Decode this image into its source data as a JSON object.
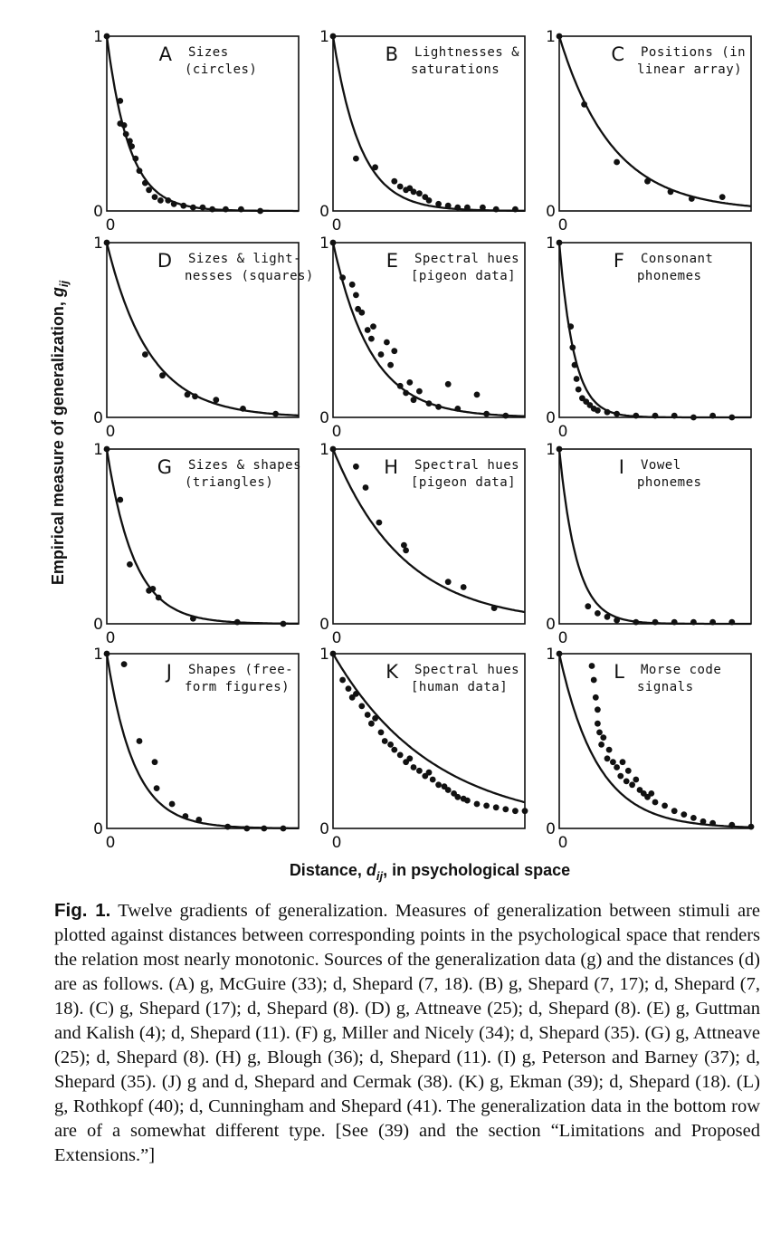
{
  "figure": {
    "y_axis_label": "Empirical measure of generalization, ",
    "y_axis_symbol": "g",
    "y_axis_subscript": "ij",
    "x_axis_label_pre": "Distance, ",
    "x_axis_symbol": "d",
    "x_axis_subscript": "ij",
    "x_axis_label_post": ", in psychological space",
    "tick_one": "1",
    "tick_zero": "0"
  },
  "chart_data": [
    {
      "type": "scatter",
      "letter": "A",
      "title_lines": [
        "Sizes",
        "(circles)"
      ],
      "ylim": [
        0,
        1
      ],
      "xlim": [
        0,
        1
      ],
      "decay": 8.5,
      "points": [
        [
          0.0,
          1.0
        ],
        [
          0.07,
          0.63
        ],
        [
          0.07,
          0.5
        ],
        [
          0.09,
          0.49
        ],
        [
          0.1,
          0.44
        ],
        [
          0.12,
          0.4
        ],
        [
          0.13,
          0.37
        ],
        [
          0.15,
          0.3
        ],
        [
          0.17,
          0.23
        ],
        [
          0.2,
          0.16
        ],
        [
          0.22,
          0.12
        ],
        [
          0.25,
          0.08
        ],
        [
          0.28,
          0.06
        ],
        [
          0.32,
          0.06
        ],
        [
          0.35,
          0.04
        ],
        [
          0.4,
          0.03
        ],
        [
          0.45,
          0.02
        ],
        [
          0.5,
          0.02
        ],
        [
          0.55,
          0.01
        ],
        [
          0.62,
          0.01
        ],
        [
          0.7,
          0.01
        ],
        [
          0.8,
          0.0
        ]
      ]
    },
    {
      "type": "scatter",
      "letter": "B",
      "title_lines": [
        "Lightnesses &",
        "saturations"
      ],
      "ylim": [
        0,
        1
      ],
      "xlim": [
        0,
        1
      ],
      "decay": 7,
      "points": [
        [
          0.0,
          1.0
        ],
        [
          0.12,
          0.3
        ],
        [
          0.22,
          0.25
        ],
        [
          0.32,
          0.17
        ],
        [
          0.35,
          0.14
        ],
        [
          0.38,
          0.12
        ],
        [
          0.4,
          0.13
        ],
        [
          0.42,
          0.11
        ],
        [
          0.45,
          0.1
        ],
        [
          0.48,
          0.08
        ],
        [
          0.5,
          0.06
        ],
        [
          0.55,
          0.04
        ],
        [
          0.6,
          0.03
        ],
        [
          0.65,
          0.02
        ],
        [
          0.7,
          0.02
        ],
        [
          0.78,
          0.02
        ],
        [
          0.85,
          0.01
        ],
        [
          0.95,
          0.01
        ]
      ]
    },
    {
      "type": "scatter",
      "letter": "C",
      "title_lines": [
        "Positions (in",
        "linear array)"
      ],
      "ylim": [
        0,
        1
      ],
      "xlim": [
        0,
        1
      ],
      "decay": 3.6,
      "points": [
        [
          0.0,
          1.0
        ],
        [
          0.13,
          0.61
        ],
        [
          0.3,
          0.28
        ],
        [
          0.46,
          0.17
        ],
        [
          0.58,
          0.11
        ],
        [
          0.69,
          0.07
        ],
        [
          0.85,
          0.08
        ]
      ]
    },
    {
      "type": "scatter",
      "letter": "D",
      "title_lines": [
        "Sizes & light-",
        "nesses (squares)"
      ],
      "ylim": [
        0,
        1
      ],
      "xlim": [
        0,
        1
      ],
      "decay": 4.5,
      "points": [
        [
          0.0,
          1.0
        ],
        [
          0.2,
          0.36
        ],
        [
          0.29,
          0.24
        ],
        [
          0.42,
          0.13
        ],
        [
          0.46,
          0.12
        ],
        [
          0.57,
          0.1
        ],
        [
          0.71,
          0.05
        ],
        [
          0.88,
          0.02
        ]
      ]
    },
    {
      "type": "scatter",
      "letter": "E",
      "title_lines": [
        "Spectral hues",
        "[pigeon data]"
      ],
      "ylim": [
        0,
        1
      ],
      "xlim": [
        0,
        1
      ],
      "decay": 5,
      "points": [
        [
          0.0,
          1.0
        ],
        [
          0.05,
          0.8
        ],
        [
          0.1,
          0.76
        ],
        [
          0.12,
          0.7
        ],
        [
          0.13,
          0.62
        ],
        [
          0.15,
          0.6
        ],
        [
          0.18,
          0.5
        ],
        [
          0.2,
          0.45
        ],
        [
          0.21,
          0.52
        ],
        [
          0.25,
          0.36
        ],
        [
          0.28,
          0.43
        ],
        [
          0.3,
          0.3
        ],
        [
          0.32,
          0.38
        ],
        [
          0.35,
          0.18
        ],
        [
          0.38,
          0.14
        ],
        [
          0.4,
          0.2
        ],
        [
          0.42,
          0.1
        ],
        [
          0.45,
          0.15
        ],
        [
          0.5,
          0.08
        ],
        [
          0.55,
          0.06
        ],
        [
          0.6,
          0.19
        ],
        [
          0.65,
          0.05
        ],
        [
          0.75,
          0.13
        ],
        [
          0.8,
          0.02
        ],
        [
          0.9,
          0.01
        ]
      ]
    },
    {
      "type": "scatter",
      "letter": "F",
      "title_lines": [
        "Consonant",
        "phonemes"
      ],
      "ylim": [
        0,
        1
      ],
      "xlim": [
        0,
        1
      ],
      "decay": 13,
      "points": [
        [
          0.0,
          1.0
        ],
        [
          0.06,
          0.52
        ],
        [
          0.07,
          0.4
        ],
        [
          0.08,
          0.3
        ],
        [
          0.09,
          0.22
        ],
        [
          0.1,
          0.16
        ],
        [
          0.12,
          0.11
        ],
        [
          0.14,
          0.09
        ],
        [
          0.16,
          0.07
        ],
        [
          0.18,
          0.05
        ],
        [
          0.2,
          0.04
        ],
        [
          0.25,
          0.03
        ],
        [
          0.3,
          0.02
        ],
        [
          0.4,
          0.01
        ],
        [
          0.5,
          0.01
        ],
        [
          0.6,
          0.01
        ],
        [
          0.7,
          0.0
        ],
        [
          0.8,
          0.01
        ],
        [
          0.9,
          0.0
        ]
      ]
    },
    {
      "type": "scatter",
      "letter": "G",
      "title_lines": [
        "Sizes & shapes",
        "(triangles)"
      ],
      "ylim": [
        0,
        1
      ],
      "xlim": [
        0,
        1
      ],
      "decay": 7,
      "points": [
        [
          0.0,
          1.0
        ],
        [
          0.07,
          0.71
        ],
        [
          0.12,
          0.34
        ],
        [
          0.22,
          0.19
        ],
        [
          0.24,
          0.2
        ],
        [
          0.27,
          0.15
        ],
        [
          0.45,
          0.03
        ],
        [
          0.68,
          0.01
        ],
        [
          0.92,
          0.0
        ]
      ]
    },
    {
      "type": "scatter",
      "letter": "H",
      "title_lines": [
        "Spectral hues",
        "[pigeon data]"
      ],
      "ylim": [
        0,
        1
      ],
      "xlim": [
        0,
        1
      ],
      "decay": 2.7,
      "points": [
        [
          0.0,
          1.0
        ],
        [
          0.12,
          0.9
        ],
        [
          0.17,
          0.78
        ],
        [
          0.24,
          0.58
        ],
        [
          0.37,
          0.45
        ],
        [
          0.38,
          0.42
        ],
        [
          0.6,
          0.24
        ],
        [
          0.68,
          0.21
        ],
        [
          0.84,
          0.09
        ]
      ]
    },
    {
      "type": "scatter",
      "letter": "I",
      "title_lines": [
        "Vowel",
        "phonemes"
      ],
      "ylim": [
        0,
        1
      ],
      "xlim": [
        0,
        1
      ],
      "decay": 11,
      "points": [
        [
          0.0,
          1.0
        ],
        [
          0.15,
          0.1
        ],
        [
          0.2,
          0.06
        ],
        [
          0.25,
          0.04
        ],
        [
          0.3,
          0.02
        ],
        [
          0.4,
          0.01
        ],
        [
          0.5,
          0.01
        ],
        [
          0.6,
          0.01
        ],
        [
          0.7,
          0.01
        ],
        [
          0.8,
          0.01
        ],
        [
          0.9,
          0.01
        ]
      ]
    },
    {
      "type": "scatter",
      "letter": "J",
      "title_lines": [
        "Shapes (free-",
        "form figures)"
      ],
      "ylim": [
        0,
        1
      ],
      "xlim": [
        0,
        1
      ],
      "decay": 7,
      "points": [
        [
          0.0,
          1.0
        ],
        [
          0.09,
          0.94
        ],
        [
          0.17,
          0.5
        ],
        [
          0.25,
          0.38
        ],
        [
          0.26,
          0.23
        ],
        [
          0.34,
          0.14
        ],
        [
          0.41,
          0.07
        ],
        [
          0.48,
          0.05
        ],
        [
          0.63,
          0.01
        ],
        [
          0.73,
          0.0
        ],
        [
          0.82,
          0.0
        ],
        [
          0.92,
          0.0
        ]
      ]
    },
    {
      "type": "scatter",
      "letter": "K",
      "title_lines": [
        "Spectral hues",
        "[human data]"
      ],
      "ylim": [
        0,
        1
      ],
      "xlim": [
        0,
        1
      ],
      "decay": 1.9,
      "points": [
        [
          0.0,
          1.0
        ],
        [
          0.05,
          0.85
        ],
        [
          0.08,
          0.8
        ],
        [
          0.1,
          0.75
        ],
        [
          0.12,
          0.77
        ],
        [
          0.15,
          0.7
        ],
        [
          0.18,
          0.65
        ],
        [
          0.2,
          0.6
        ],
        [
          0.22,
          0.63
        ],
        [
          0.25,
          0.55
        ],
        [
          0.27,
          0.5
        ],
        [
          0.3,
          0.48
        ],
        [
          0.32,
          0.45
        ],
        [
          0.35,
          0.42
        ],
        [
          0.38,
          0.38
        ],
        [
          0.4,
          0.4
        ],
        [
          0.42,
          0.35
        ],
        [
          0.45,
          0.33
        ],
        [
          0.48,
          0.3
        ],
        [
          0.5,
          0.32
        ],
        [
          0.52,
          0.28
        ],
        [
          0.55,
          0.25
        ],
        [
          0.58,
          0.24
        ],
        [
          0.6,
          0.22
        ],
        [
          0.63,
          0.2
        ],
        [
          0.65,
          0.18
        ],
        [
          0.68,
          0.17
        ],
        [
          0.7,
          0.16
        ],
        [
          0.75,
          0.14
        ],
        [
          0.8,
          0.13
        ],
        [
          0.85,
          0.12
        ],
        [
          0.9,
          0.11
        ],
        [
          0.95,
          0.1
        ],
        [
          1.0,
          0.1
        ]
      ]
    },
    {
      "type": "scatter",
      "letter": "L",
      "title_lines": [
        "Morse code",
        "signals"
      ],
      "ylim": [
        0,
        1
      ],
      "xlim": [
        0,
        1
      ],
      "decay": 5,
      "points": [
        [
          0.0,
          1.0
        ],
        [
          0.17,
          0.93
        ],
        [
          0.18,
          0.85
        ],
        [
          0.19,
          0.75
        ],
        [
          0.2,
          0.68
        ],
        [
          0.2,
          0.6
        ],
        [
          0.21,
          0.55
        ],
        [
          0.22,
          0.48
        ],
        [
          0.23,
          0.52
        ],
        [
          0.25,
          0.4
        ],
        [
          0.26,
          0.45
        ],
        [
          0.28,
          0.38
        ],
        [
          0.3,
          0.35
        ],
        [
          0.32,
          0.3
        ],
        [
          0.33,
          0.38
        ],
        [
          0.35,
          0.27
        ],
        [
          0.36,
          0.33
        ],
        [
          0.38,
          0.25
        ],
        [
          0.4,
          0.28
        ],
        [
          0.42,
          0.22
        ],
        [
          0.44,
          0.2
        ],
        [
          0.46,
          0.18
        ],
        [
          0.48,
          0.2
        ],
        [
          0.5,
          0.15
        ],
        [
          0.55,
          0.13
        ],
        [
          0.6,
          0.1
        ],
        [
          0.65,
          0.08
        ],
        [
          0.7,
          0.06
        ],
        [
          0.75,
          0.04
        ],
        [
          0.8,
          0.03
        ],
        [
          0.9,
          0.02
        ],
        [
          1.0,
          0.01
        ]
      ]
    }
  ],
  "caption": {
    "label": "Fig. 1.",
    "text": "Twelve gradients of generalization. Measures of generalization between stimuli are plotted against distances between corresponding points in the psychological space that renders the relation most nearly monotonic. Sources of the generalization data (g) and the distances (d) are as follows. (A) g, McGuire (33); d, Shepard (7, 18). (B) g, Shepard (7, 17); d, Shepard (7, 18). (C) g, Shepard (17); d, Shepard (8). (D) g, Attneave (25); d, Shepard (8). (E) g, Guttman and Kalish (4); d, Shepard (11). (F) g, Miller and Nicely (34); d, Shepard (35). (G) g, Attneave (25); d, Shepard (8). (H) g, Blough (36); d, Shepard (11). (I) g, Peterson and Barney (37); d, Shepard (35). (J) g and d, Shepard and Cermak (38). (K) g, Ekman (39); d, Shepard (18). (L) g, Rothkopf (40); d, Cunningham and Shepard (41). The generalization data in the bottom row are of a somewhat different type. [See (39) and the section “Limitations and Proposed Extensions.”]"
  }
}
